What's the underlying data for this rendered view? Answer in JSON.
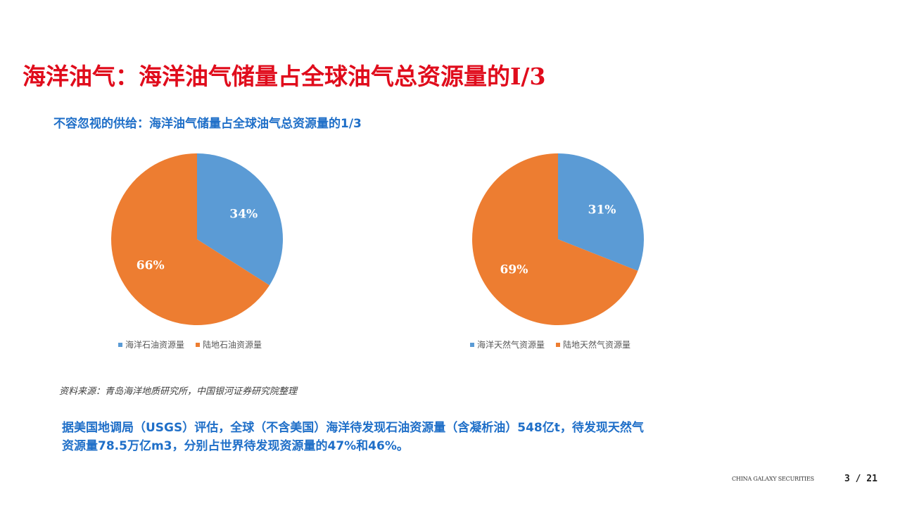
{
  "header": {
    "title": "海洋油气：海洋油气储量占全球油气总资源量的I/3",
    "subtitle": "不容忽视的供给：海洋油气储量占全球油气总资源量的1/3"
  },
  "colors": {
    "title_red": "#e00c1c",
    "accent_blue": "#1f6fc8",
    "offshore_blue": "#5b9bd5",
    "onshore_orange": "#ed7d31"
  },
  "chart_data": [
    {
      "type": "pie",
      "title": "",
      "slices": [
        {
          "name": "海洋石油资源量",
          "value": 34,
          "label": "34%",
          "color": "#5b9bd5"
        },
        {
          "name": "陆地石油资源量",
          "value": 66,
          "label": "66%",
          "color": "#ed7d31"
        }
      ],
      "legend": "bottom"
    },
    {
      "type": "pie",
      "title": "",
      "slices": [
        {
          "name": "海洋天然气资源量",
          "value": 31,
          "label": "31%",
          "color": "#5b9bd5"
        },
        {
          "name": "陆地天然气资源量",
          "value": 69,
          "label": "69%",
          "color": "#ed7d31"
        }
      ],
      "legend": "bottom"
    }
  ],
  "source": "资料来源：青岛海洋地质研究所，中国银河证券研究院整理",
  "body": {
    "line1": "据美国地调局（USGS）评估，全球（不含美国）海洋待发现石油资源量（含凝析油）548亿t，待发现天然气",
    "line2": "资源量78.5万亿m3，分别占世界待发现资源量的47%和46%。"
  },
  "footer": {
    "brand": "CHINA GALAXY SECURITIES",
    "page": "3 / 21"
  }
}
